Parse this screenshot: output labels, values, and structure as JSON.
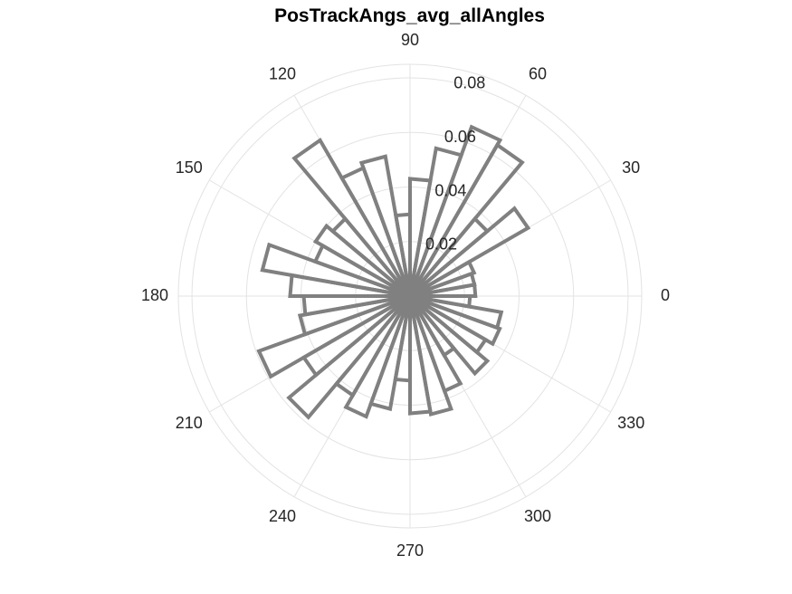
{
  "chart_data": {
    "type": "polar-histogram",
    "title": "PosTrackAngs_avg_allAngles",
    "theta_ticks": [
      0,
      30,
      60,
      90,
      120,
      150,
      180,
      210,
      240,
      270,
      300,
      330
    ],
    "theta_tick_labels": [
      "0",
      "30",
      "60",
      "90",
      "120",
      "150",
      "180",
      "210",
      "240",
      "270",
      "300",
      "330"
    ],
    "r_ticks": [
      0.02,
      0.04,
      0.06,
      0.08
    ],
    "r_tick_labels": [
      "0.02",
      "0.04",
      "0.06",
      "0.08"
    ],
    "r_tick_angle_deg": 80,
    "rlim": [
      0,
      0.085
    ],
    "bin_width_deg": 10,
    "bin_edges_deg": [
      0,
      10,
      20,
      30,
      40,
      50,
      60,
      70,
      80,
      90,
      100,
      110,
      120,
      130,
      140,
      150,
      160,
      170,
      180,
      190,
      200,
      210,
      220,
      230,
      240,
      250,
      260,
      270,
      280,
      290,
      300,
      310,
      320,
      330,
      340,
      350,
      360
    ],
    "values": [
      0.024,
      0.024,
      0.025,
      0.05,
      0.037,
      0.064,
      0.066,
      0.055,
      0.043,
      0.03,
      0.052,
      0.05,
      0.066,
      0.037,
      0.04,
      0.037,
      0.055,
      0.044,
      0.039,
      0.041,
      0.059,
      0.045,
      0.058,
      0.042,
      0.047,
      0.042,
      0.031,
      0.043,
      0.044,
      0.037,
      0.025,
      0.037,
      0.032,
      0.035,
      0.034,
      0.022
    ],
    "edge_color": "#808080",
    "grid": true
  }
}
